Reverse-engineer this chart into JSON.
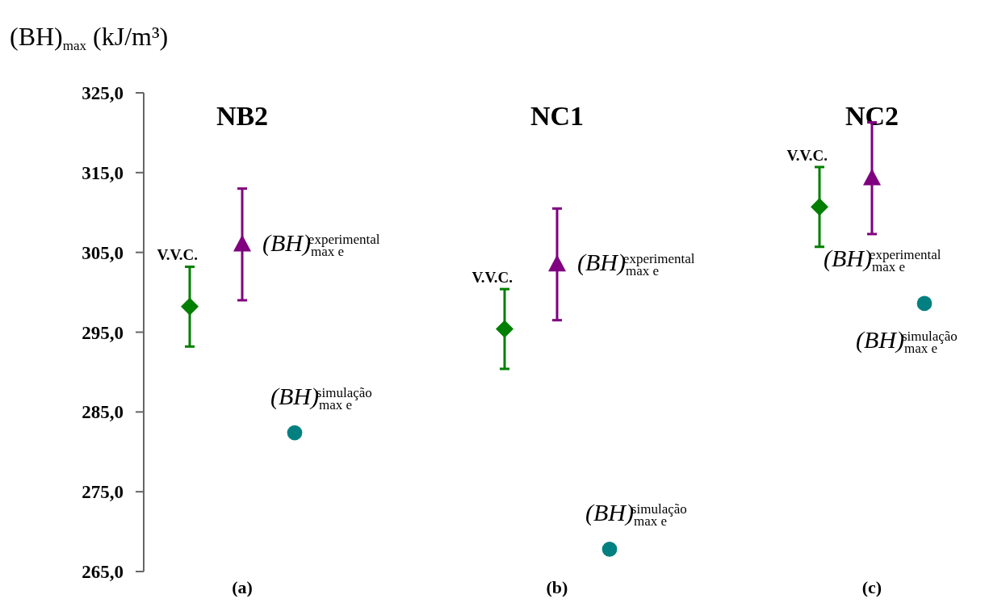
{
  "chart_data": {
    "type": "scatter",
    "ylabel": "(BH)$_{max}$ (kJ/m³)",
    "categories": [
      null,
      "(a)",
      null,
      null,
      null,
      null,
      null,
      "(b)",
      null,
      null,
      null,
      null,
      null,
      "(c)",
      null
    ],
    "annotations": [
      "NB2",
      "NC1",
      "NC2"
    ],
    "ylim": [
      265,
      325
    ],
    "yticks": [
      {
        "value": 265,
        "label": "265,0"
      },
      {
        "value": 275,
        "label": "275,0"
      },
      {
        "value": 285,
        "label": "285,0"
      },
      {
        "value": 295,
        "label": "295,0"
      },
      {
        "value": 305,
        "label": "305,0"
      },
      {
        "value": 315,
        "label": "315,0"
      },
      {
        "value": 325,
        "label": "325,0"
      }
    ],
    "series": [
      {
        "name": "V.V.C.",
        "color": "#007f00",
        "marker": "diamond",
        "values": [
          298.2,
          null,
          null,
          null,
          null,
          null,
          295.4,
          null,
          null,
          null,
          null,
          null,
          310.7,
          null,
          null
        ],
        "errors": [
          5,
          null,
          null,
          null,
          null,
          null,
          5,
          null,
          null,
          null,
          null,
          null,
          5,
          null,
          null
        ]
      },
      {
        "name": "(BH)$_{max e}$$^{experimental}$",
        "color": "#800080",
        "marker": "triangle",
        "values": [
          null,
          306.0,
          null,
          null,
          null,
          null,
          null,
          303.5,
          null,
          null,
          null,
          null,
          null,
          314.3,
          null
        ],
        "errors": [
          null,
          7,
          null,
          null,
          null,
          null,
          null,
          7,
          null,
          null,
          null,
          null,
          null,
          7,
          null
        ]
      },
      {
        "name": "(BH)$_{max e}$$^{simulação}$",
        "color": "#008080",
        "marker": "circle",
        "values": [
          null,
          null,
          282.4,
          null,
          null,
          null,
          null,
          null,
          267.8,
          null,
          null,
          null,
          null,
          null,
          298.6
        ]
      }
    ]
  }
}
